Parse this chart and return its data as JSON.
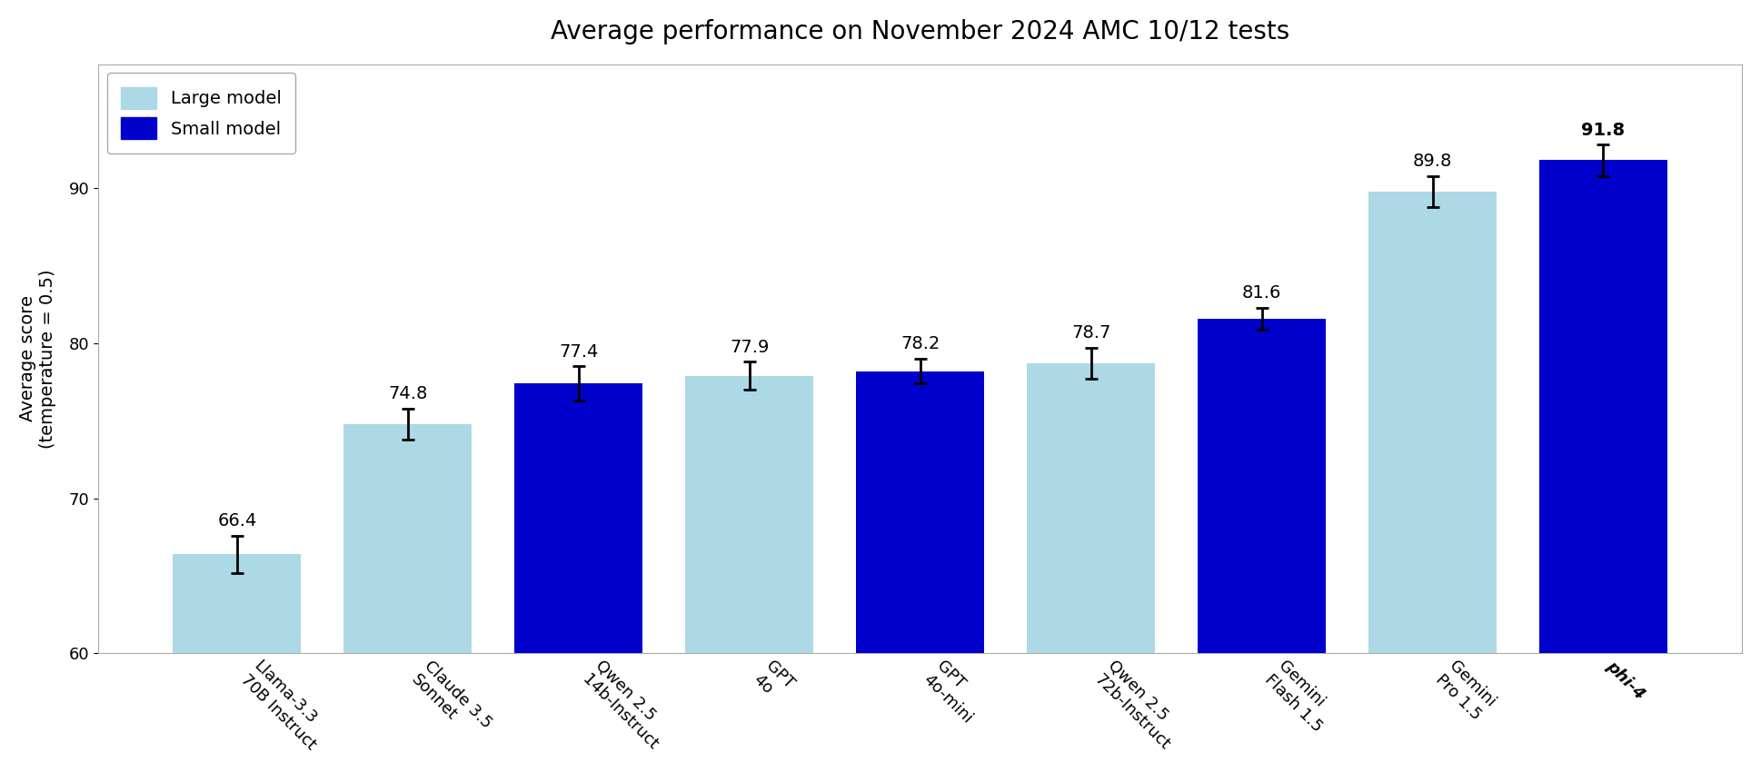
{
  "title": "Average performance on November 2024 AMC 10/12 tests",
  "ylabel": "Average score\n(temperature = 0.5)",
  "categories": [
    "Llama-3.3\n70B Instruct",
    "Claude 3.5\nSonnet",
    "Qwen 2.5\n14b-Instruct",
    "GPT\n4o",
    "GPT\n4o-mini",
    "Qwen 2.5\n72b-Instruct",
    "Gemini\nFlash 1.5",
    "Gemini\nPro 1.5",
    "phi-4"
  ],
  "values": [
    66.4,
    74.8,
    77.4,
    77.9,
    78.2,
    78.7,
    81.6,
    89.8,
    91.8
  ],
  "errors": [
    1.2,
    1.0,
    1.1,
    0.9,
    0.8,
    1.0,
    0.7,
    1.0,
    1.0
  ],
  "colors": [
    "#add8e6",
    "#add8e6",
    "#0000cc",
    "#add8e6",
    "#0000cc",
    "#add8e6",
    "#0000cc",
    "#add8e6",
    "#0000cc"
  ],
  "ylim": [
    60,
    98
  ],
  "yticks": [
    60,
    70,
    80,
    90
  ],
  "large_color": "#add8e6",
  "small_color": "#0000cc",
  "legend_large": "Large model",
  "legend_small": "Small model",
  "background_color": "#ffffff",
  "title_fontsize": 20,
  "label_fontsize": 14,
  "tick_fontsize": 13,
  "value_fontsize": 14,
  "bar_width": 0.75,
  "xlabel_rotation": -45
}
